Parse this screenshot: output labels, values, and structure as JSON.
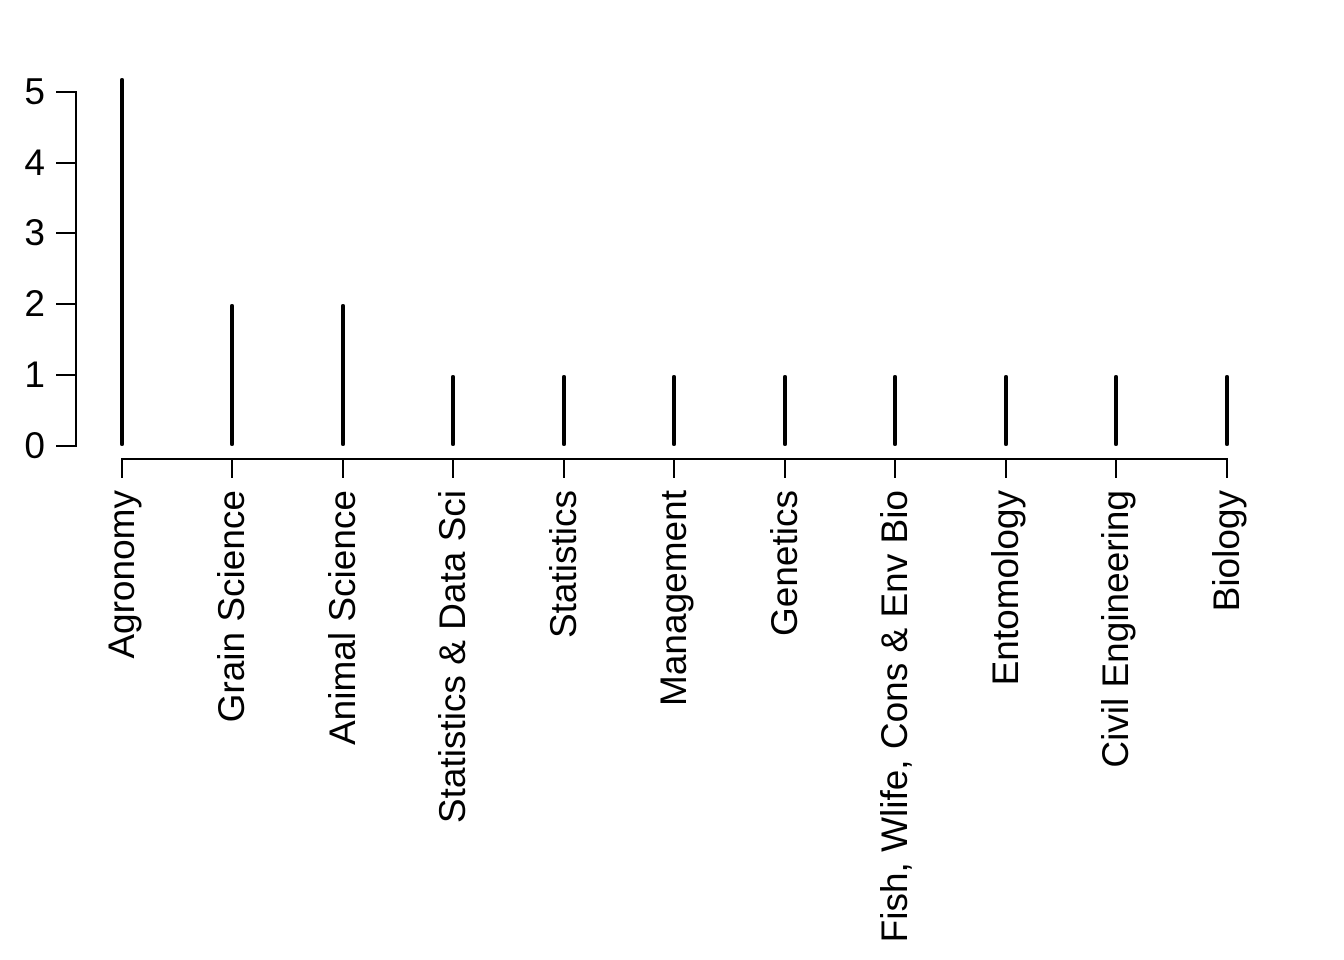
{
  "chart_data": {
    "type": "bar",
    "subtype": "spike-plot",
    "title": "",
    "xlabel": "",
    "ylabel": "",
    "categories": [
      "Agronomy",
      "Grain Science",
      "Animal Science",
      "Statistics & Data Sci",
      "Statistics",
      "Management",
      "Genetics",
      "Fish, Wlife, Cons & Env Bio",
      "Entomology",
      "Civil Engineering",
      "Biology"
    ],
    "values": [
      5.2,
      2,
      2,
      1,
      1,
      1,
      1,
      1,
      1,
      1,
      1
    ],
    "yticks": [
      "0",
      "1",
      "2",
      "3",
      "4",
      "5"
    ],
    "ylim": [
      0,
      5.2
    ],
    "grid": false,
    "legend": null,
    "colors": {
      "spike": "#000000",
      "axis": "#000000",
      "text": "#000000",
      "background": "#ffffff"
    }
  }
}
